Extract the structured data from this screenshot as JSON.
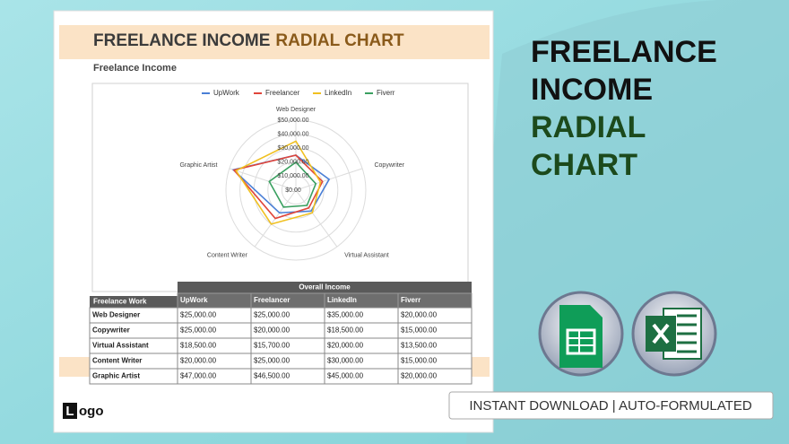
{
  "sheet": {
    "title_part1": "FREELANCE INCOME",
    "title_part2": "RADIAL CHART",
    "section_title": "Freelance Income",
    "logo_mark": "L",
    "logo_text": "ogo"
  },
  "chart_data": {
    "type": "radar",
    "categories": [
      "Web Designer",
      "Copywriter",
      "Virtual Assistant",
      "Content Writer",
      "Graphic Artist"
    ],
    "series": [
      {
        "name": "UpWork",
        "color": "#4a7fd6",
        "values": [
          25000,
          25000,
          18500,
          20000,
          47000
        ]
      },
      {
        "name": "Freelancer",
        "color": "#e0453a",
        "values": [
          25000,
          20000,
          15700,
          25000,
          46500
        ]
      },
      {
        "name": "LinkedIn",
        "color": "#f0c020",
        "values": [
          35000,
          18500,
          20000,
          30000,
          45000
        ]
      },
      {
        "name": "Fiverr",
        "color": "#3aa060",
        "values": [
          20000,
          15000,
          13500,
          15000,
          20000
        ]
      }
    ],
    "rlim": [
      0,
      50000
    ],
    "rticks": [
      {
        "value": 0,
        "label": "$0.00"
      },
      {
        "value": 10000,
        "label": "$10,000.00"
      },
      {
        "value": 20000,
        "label": "$20,000.00"
      },
      {
        "value": 30000,
        "label": "$30,000.00"
      },
      {
        "value": 40000,
        "label": "$40,000.00"
      },
      {
        "value": 50000,
        "label": "$50,000.00"
      }
    ],
    "legend": "top",
    "grid": true
  },
  "table": {
    "row_header": "Freelance Work",
    "group_header": "Overall Income",
    "columns": [
      "UpWork",
      "Freelancer",
      "LinkedIn",
      "Fiverr"
    ],
    "rows": [
      [
        "Web Designer",
        "$25,000.00",
        "$25,000.00",
        "$35,000.00",
        "$20,000.00"
      ],
      [
        "Copywriter",
        "$25,000.00",
        "$20,000.00",
        "$18,500.00",
        "$15,000.00"
      ],
      [
        "Virtual Assistant",
        "$18,500.00",
        "$15,700.00",
        "$20,000.00",
        "$13,500.00"
      ],
      [
        "Content Writer",
        "$20,000.00",
        "$25,000.00",
        "$30,000.00",
        "$15,000.00"
      ],
      [
        "Graphic Artist",
        "$47,000.00",
        "$46,500.00",
        "$45,000.00",
        "$20,000.00"
      ]
    ]
  },
  "promo": {
    "title_lines": [
      "FREELANCE",
      "INCOME",
      "RADIAL",
      "CHART"
    ],
    "badge": "INSTANT DOWNLOAD | AUTO-FORMULATED"
  }
}
